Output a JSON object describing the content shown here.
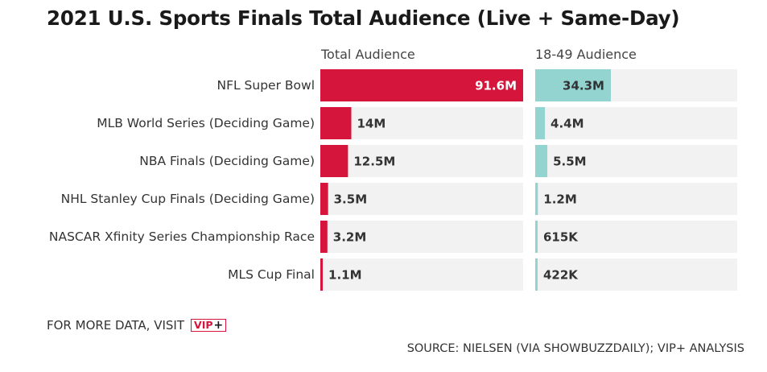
{
  "title": "2021 U.S. Sports Finals Total Audience (Live + Same-Day)",
  "colors": {
    "total_bar": "#d6153c",
    "demo_bar": "#93d3d0",
    "track": "#f2f2f2",
    "label_dark": "#333333",
    "label_light": "#ffffff"
  },
  "chart_data": {
    "type": "bar",
    "orientation": "horizontal",
    "categories": [
      "NFL Super Bowl",
      "MLB World Series (Deciding Game)",
      "NBA Finals (Deciding Game)",
      "NHL Stanley Cup Finals (Deciding Game)",
      "NASCAR Xfinity Series Championship Race",
      "MLS Cup Final"
    ],
    "series": [
      {
        "name": "Total Audience",
        "values": [
          91.6,
          14,
          12.5,
          3.5,
          3.2,
          1.1
        ],
        "labels": [
          "91.6M",
          "14M",
          "12.5M",
          "3.5M",
          "3.2M",
          "1.1M"
        ],
        "max": 91.6
      },
      {
        "name": "18-49 Audience",
        "values": [
          34.3,
          4.4,
          5.5,
          1.2,
          0.615,
          0.422
        ],
        "labels": [
          "34.3M",
          "4.4M",
          "5.5M",
          "1.2M",
          "615K",
          "422K"
        ],
        "max": 91.6
      }
    ]
  },
  "footer": {
    "more_data": "FOR MORE DATA, VISIT",
    "vip_text": "VIP",
    "vip_plus": "+",
    "source": "SOURCE: NIELSEN (VIA SHOWBUZZDAILY); VIP+ ANALYSIS"
  }
}
